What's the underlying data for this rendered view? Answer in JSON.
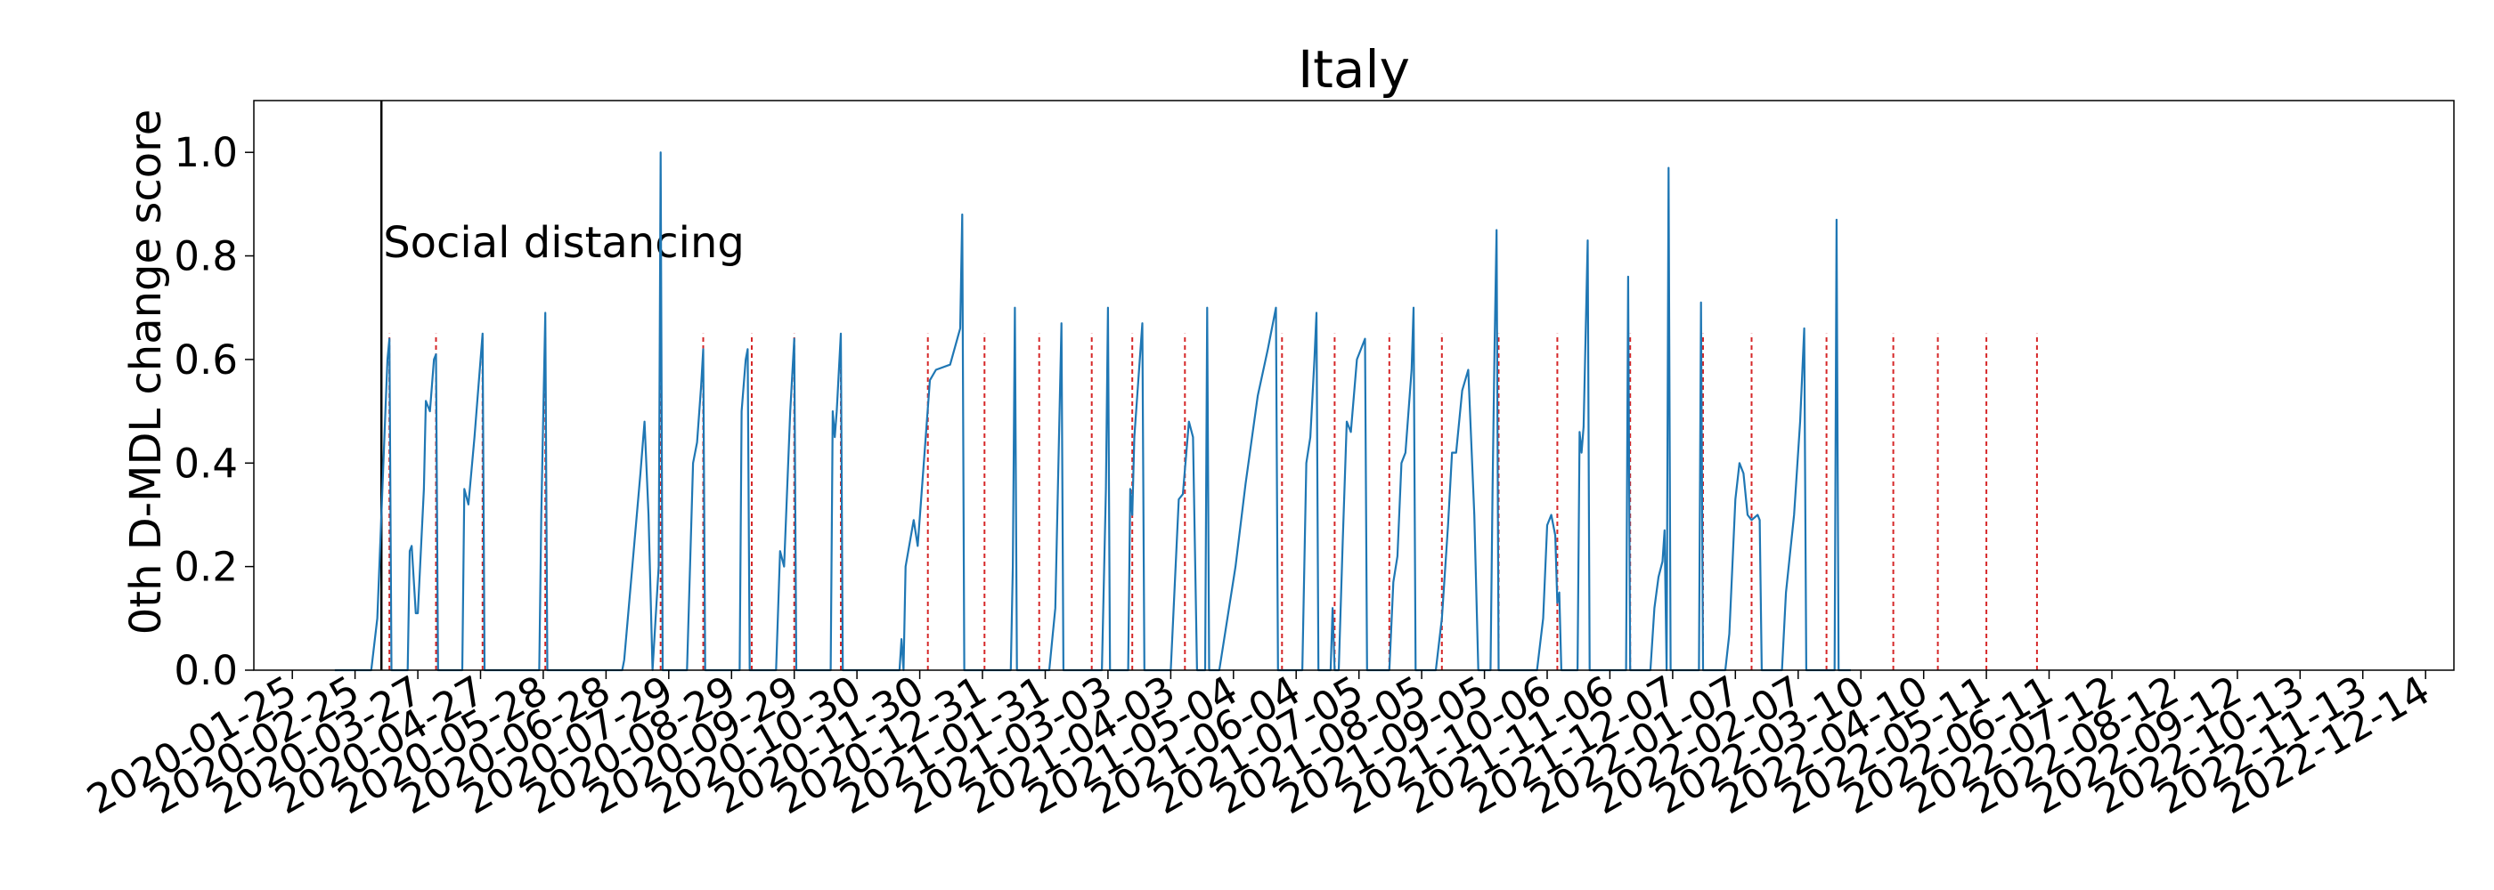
{
  "chart_data": {
    "type": "line",
    "title": "Italy",
    "xlabel": "",
    "ylabel": "0th D-MDL change score",
    "xlim": [
      "2020-01-06",
      "2022-12-28"
    ],
    "ylim": [
      0,
      1.1
    ],
    "grid": false,
    "x_ticks": [
      "2020-01-25",
      "2020-02-25",
      "2020-03-27",
      "2020-04-27",
      "2020-05-28",
      "2020-06-28",
      "2020-07-29",
      "2020-08-29",
      "2020-09-29",
      "2020-10-30",
      "2020-11-30",
      "2020-12-31",
      "2021-01-31",
      "2021-03-03",
      "2021-04-03",
      "2021-05-04",
      "2021-06-04",
      "2021-07-05",
      "2021-08-05",
      "2021-09-05",
      "2021-10-06",
      "2021-11-06",
      "2021-12-07",
      "2022-01-07",
      "2022-02-07",
      "2022-03-10",
      "2022-04-10",
      "2022-05-11",
      "2022-06-11",
      "2022-07-12",
      "2022-08-12",
      "2022-09-12",
      "2022-10-13",
      "2022-11-13",
      "2022-12-14"
    ],
    "y_ticks": [
      "0.0",
      "0.2",
      "0.4",
      "0.6",
      "0.8",
      "1.0"
    ],
    "colors": {
      "series": "#1f77b4",
      "alarm": "#d62728",
      "event": "#000000"
    },
    "annotations": [
      {
        "date": "2020-03-09",
        "label": "Social distancing"
      }
    ],
    "alarm_dates": [
      "2020-03-13",
      "2020-04-05",
      "2020-04-28",
      "2020-05-29",
      "2020-07-25",
      "2020-08-15",
      "2020-09-08",
      "2020-09-29",
      "2020-10-22",
      "2020-12-04",
      "2021-01-01",
      "2021-01-28",
      "2021-02-23",
      "2021-03-15",
      "2021-04-10",
      "2021-05-28",
      "2021-06-23",
      "2021-07-20",
      "2021-08-15",
      "2021-09-12",
      "2021-10-11",
      "2021-11-16",
      "2021-12-22",
      "2022-01-15",
      "2022-02-21",
      "2022-03-26",
      "2022-04-17",
      "2022-05-11",
      "2022-06-05"
    ],
    "series": [
      {
        "name": "",
        "points": [
          [
            "2020-02-15",
            0
          ],
          [
            "2020-03-04",
            0
          ],
          [
            "2020-03-07",
            0.1
          ],
          [
            "2020-03-09",
            0.3
          ],
          [
            "2020-03-11",
            0.5
          ],
          [
            "2020-03-12",
            0.6
          ],
          [
            "2020-03-13",
            0.64
          ],
          [
            "2020-03-14",
            0
          ],
          [
            "2020-03-22",
            0
          ],
          [
            "2020-03-23",
            0.23
          ],
          [
            "2020-03-24",
            0.24
          ],
          [
            "2020-03-26",
            0.11
          ],
          [
            "2020-03-27",
            0.11
          ],
          [
            "2020-03-30",
            0.35
          ],
          [
            "2020-03-31",
            0.52
          ],
          [
            "2020-04-02",
            0.5
          ],
          [
            "2020-04-04",
            0.6
          ],
          [
            "2020-04-05",
            0.61
          ],
          [
            "2020-04-06",
            0
          ],
          [
            "2020-04-18",
            0
          ],
          [
            "2020-04-19",
            0.35
          ],
          [
            "2020-04-21",
            0.32
          ],
          [
            "2020-04-24",
            0.45
          ],
          [
            "2020-04-28",
            0.65
          ],
          [
            "2020-04-29",
            0
          ],
          [
            "2020-05-26",
            0
          ],
          [
            "2020-05-27",
            0.3
          ],
          [
            "2020-05-29",
            0.69
          ],
          [
            "2020-05-30",
            0
          ],
          [
            "2020-07-06",
            0
          ],
          [
            "2020-07-07",
            0.02
          ],
          [
            "2020-07-11",
            0.2
          ],
          [
            "2020-07-15",
            0.38
          ],
          [
            "2020-07-17",
            0.48
          ],
          [
            "2020-07-19",
            0.3
          ],
          [
            "2020-07-21",
            0
          ],
          [
            "2020-07-24",
            0.2
          ],
          [
            "2020-07-25",
            1.0
          ],
          [
            "2020-07-26",
            0
          ],
          [
            "2020-08-07",
            0
          ],
          [
            "2020-08-10",
            0.4
          ],
          [
            "2020-08-12",
            0.44
          ],
          [
            "2020-08-14",
            0.55
          ],
          [
            "2020-08-15",
            0.62
          ],
          [
            "2020-08-16",
            0
          ],
          [
            "2020-09-02",
            0
          ],
          [
            "2020-09-03",
            0.5
          ],
          [
            "2020-09-05",
            0.6
          ],
          [
            "2020-09-06",
            0.62
          ],
          [
            "2020-09-07",
            0
          ],
          [
            "2020-09-20",
            0
          ],
          [
            "2020-09-22",
            0.23
          ],
          [
            "2020-09-24",
            0.2
          ],
          [
            "2020-09-27",
            0.5
          ],
          [
            "2020-09-29",
            0.64
          ],
          [
            "2020-09-30",
            0
          ],
          [
            "2020-10-17",
            0
          ],
          [
            "2020-10-18",
            0.5
          ],
          [
            "2020-10-19",
            0.45
          ],
          [
            "2020-10-20",
            0.5
          ],
          [
            "2020-10-22",
            0.65
          ],
          [
            "2020-10-23",
            0
          ],
          [
            "2020-11-20",
            0
          ],
          [
            "2020-11-21",
            0.06
          ],
          [
            "2020-11-22",
            0
          ],
          [
            "2020-11-23",
            0.2
          ],
          [
            "2020-11-27",
            0.29
          ],
          [
            "2020-11-29",
            0.24
          ],
          [
            "2020-12-05",
            0.56
          ],
          [
            "2020-12-08",
            0.58
          ],
          [
            "2020-12-15",
            0.59
          ],
          [
            "2020-12-20",
            0.66
          ],
          [
            "2020-12-21",
            0.88
          ],
          [
            "2020-12-22",
            0
          ],
          [
            "2021-01-14",
            0
          ],
          [
            "2021-01-15",
            0.2
          ],
          [
            "2021-01-16",
            0.7
          ],
          [
            "2021-01-17",
            0
          ],
          [
            "2021-02-02",
            0
          ],
          [
            "2021-02-05",
            0.12
          ],
          [
            "2021-02-08",
            0.67
          ],
          [
            "2021-02-09",
            0
          ],
          [
            "2021-02-28",
            0
          ],
          [
            "2021-03-02",
            0.35
          ],
          [
            "2021-03-03",
            0.7
          ],
          [
            "2021-03-04",
            0
          ],
          [
            "2021-03-13",
            0
          ],
          [
            "2021-03-14",
            0.35
          ],
          [
            "2021-03-15",
            0.3
          ],
          [
            "2021-03-16",
            0.45
          ],
          [
            "2021-03-20",
            0.67
          ],
          [
            "2021-03-21",
            0
          ],
          [
            "2021-04-03",
            0
          ],
          [
            "2021-04-07",
            0.33
          ],
          [
            "2021-04-09",
            0.34
          ],
          [
            "2021-04-12",
            0.48
          ],
          [
            "2021-04-14",
            0.45
          ],
          [
            "2021-04-16",
            0
          ],
          [
            "2021-04-20",
            0
          ],
          [
            "2021-04-21",
            0.7
          ],
          [
            "2021-04-22",
            0
          ],
          [
            "2021-04-27",
            0
          ],
          [
            "2021-05-05",
            0.2
          ],
          [
            "2021-05-10",
            0.36
          ],
          [
            "2021-05-16",
            0.53
          ],
          [
            "2021-05-21",
            0.62
          ],
          [
            "2021-05-25",
            0.7
          ],
          [
            "2021-05-26",
            0
          ],
          [
            "2021-06-07",
            0
          ],
          [
            "2021-06-09",
            0.4
          ],
          [
            "2021-06-11",
            0.45
          ],
          [
            "2021-06-13",
            0.6
          ],
          [
            "2021-06-14",
            0.69
          ],
          [
            "2021-06-15",
            0
          ],
          [
            "2021-06-21",
            0
          ],
          [
            "2021-06-22",
            0.12
          ],
          [
            "2021-06-23",
            0
          ],
          [
            "2021-06-25",
            0
          ],
          [
            "2021-06-27",
            0.25
          ],
          [
            "2021-06-29",
            0.48
          ],
          [
            "2021-07-01",
            0.46
          ],
          [
            "2021-07-04",
            0.6
          ],
          [
            "2021-07-08",
            0.64
          ],
          [
            "2021-07-09",
            0
          ],
          [
            "2021-07-20",
            0
          ],
          [
            "2021-07-22",
            0.17
          ],
          [
            "2021-07-24",
            0.22
          ],
          [
            "2021-07-26",
            0.4
          ],
          [
            "2021-07-28",
            0.42
          ],
          [
            "2021-07-31",
            0.58
          ],
          [
            "2021-08-01",
            0.7
          ],
          [
            "2021-08-02",
            0
          ],
          [
            "2021-08-12",
            0
          ],
          [
            "2021-08-15",
            0.1
          ],
          [
            "2021-08-18",
            0.28
          ],
          [
            "2021-08-20",
            0.42
          ],
          [
            "2021-08-22",
            0.42
          ],
          [
            "2021-08-25",
            0.54
          ],
          [
            "2021-08-28",
            0.58
          ],
          [
            "2021-08-31",
            0.3
          ],
          [
            "2021-09-02",
            0
          ],
          [
            "2021-09-08",
            0
          ],
          [
            "2021-09-09",
            0.35
          ],
          [
            "2021-09-10",
            0.62
          ],
          [
            "2021-09-11",
            0.85
          ],
          [
            "2021-09-12",
            0
          ],
          [
            "2021-10-01",
            0
          ],
          [
            "2021-10-04",
            0.1
          ],
          [
            "2021-10-06",
            0.28
          ],
          [
            "2021-10-08",
            0.3
          ],
          [
            "2021-10-10",
            0.26
          ],
          [
            "2021-10-11",
            0.13
          ],
          [
            "2021-10-12",
            0.15
          ],
          [
            "2021-10-13",
            0
          ],
          [
            "2021-10-21",
            0
          ],
          [
            "2021-10-22",
            0.46
          ],
          [
            "2021-10-23",
            0.42
          ],
          [
            "2021-10-24",
            0.47
          ],
          [
            "2021-10-26",
            0.83
          ],
          [
            "2021-10-27",
            0
          ],
          [
            "2021-11-14",
            0
          ],
          [
            "2021-11-15",
            0.76
          ],
          [
            "2021-11-16",
            0
          ],
          [
            "2021-11-26",
            0
          ],
          [
            "2021-11-28",
            0.12
          ],
          [
            "2021-11-30",
            0.18
          ],
          [
            "2021-12-02",
            0.21
          ],
          [
            "2021-12-03",
            0.27
          ],
          [
            "2021-12-04",
            0
          ],
          [
            "2021-12-05",
            0.97
          ],
          [
            "2021-12-06",
            0
          ],
          [
            "2021-12-20",
            0
          ],
          [
            "2021-12-21",
            0.71
          ],
          [
            "2021-12-22",
            0
          ],
          [
            "2022-01-02",
            0
          ],
          [
            "2022-01-04",
            0.07
          ],
          [
            "2022-01-07",
            0.33
          ],
          [
            "2022-01-09",
            0.4
          ],
          [
            "2022-01-11",
            0.38
          ],
          [
            "2022-01-13",
            0.3
          ],
          [
            "2022-01-15",
            0.29
          ],
          [
            "2022-01-18",
            0.3
          ],
          [
            "2022-01-19",
            0.29
          ],
          [
            "2022-01-20",
            0
          ],
          [
            "2022-01-30",
            0
          ],
          [
            "2022-02-01",
            0.15
          ],
          [
            "2022-02-05",
            0.3
          ],
          [
            "2022-02-08",
            0.48
          ],
          [
            "2022-02-10",
            0.66
          ],
          [
            "2022-02-11",
            0
          ],
          [
            "2022-02-25",
            0
          ],
          [
            "2022-02-26",
            0.87
          ],
          [
            "2022-02-27",
            0
          ],
          [
            "2022-03-05",
            0
          ]
        ]
      }
    ]
  }
}
